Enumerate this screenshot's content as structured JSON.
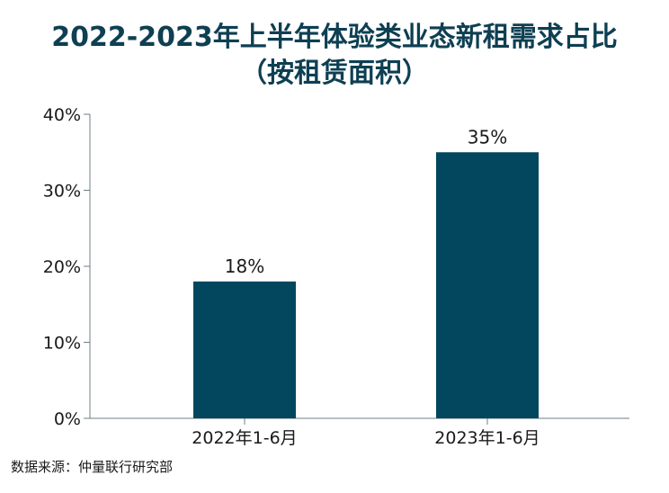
{
  "title_line1": "2022-2023年上半年体验类业态新租需求占比",
  "title_line2": "（按租赁面积）",
  "source": "数据来源：仲量联行研究部",
  "colors": {
    "bar": "#02475e",
    "title": "#0e3f52",
    "axis": "#6f7f86"
  },
  "chart_data": {
    "type": "bar",
    "categories": [
      "2022年1-6月",
      "2023年1-6月"
    ],
    "values": [
      18,
      35
    ],
    "value_labels": [
      "18%",
      "35%"
    ],
    "ylim": [
      0,
      40
    ],
    "yticks": [
      0,
      10,
      20,
      30,
      40
    ],
    "ytick_labels": [
      "0%",
      "10%",
      "20%",
      "30%",
      "40%"
    ],
    "grid": false,
    "legend": "none"
  }
}
